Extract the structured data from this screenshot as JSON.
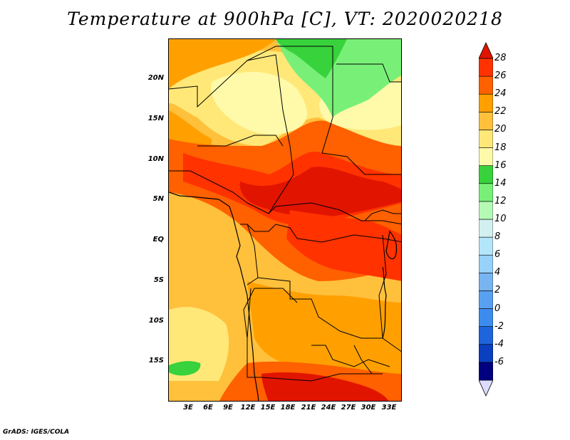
{
  "title": "Temperature at 900hPa [C], VT: 2020020218",
  "footer": "GrADS: IGES/COLA",
  "map": {
    "lon_range": [
      0,
      35
    ],
    "lat_range": [
      -20,
      25
    ],
    "lat_labels": [
      "20N",
      "15N",
      "10N",
      "5N",
      "EQ",
      "5S",
      "10S",
      "15S"
    ],
    "lat_values": [
      20,
      15,
      10,
      5,
      0,
      -5,
      -10,
      -15
    ],
    "lon_labels": [
      "3E",
      "6E",
      "9E",
      "12E",
      "15E",
      "18E",
      "21E",
      "24E",
      "27E",
      "30E",
      "33E"
    ],
    "lon_values": [
      3,
      6,
      9,
      12,
      15,
      18,
      21,
      24,
      27,
      30,
      33
    ],
    "overlay": "country borders and coastlines",
    "field": "shaded temperature (°C)"
  },
  "colorbar": {
    "labels": [
      "28",
      "26",
      "24",
      "22",
      "20",
      "18",
      "16",
      "14",
      "12",
      "10",
      "8",
      "6",
      "4",
      "2",
      "0",
      "-2",
      "-4",
      "-6"
    ],
    "colors": [
      "#000080",
      "#0a3fc0",
      "#1e64dc",
      "#3c8cf0",
      "#5aa0f0",
      "#78b4f0",
      "#96d2fa",
      "#b4e6fa",
      "#d2f0f0",
      "#b4fab4",
      "#78f078",
      "#37d23c",
      "#fffaaa",
      "#ffe878",
      "#ffc03c",
      "#ffa000",
      "#ff6000",
      "#ff3200",
      "#e11400"
    ],
    "under_color": "#dcdcff",
    "over_color": "#e11400"
  }
}
